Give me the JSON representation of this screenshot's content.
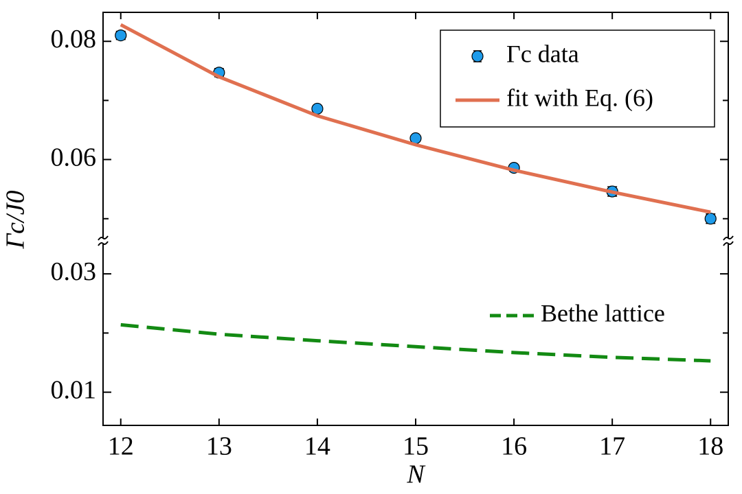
{
  "chart_data": {
    "type": "line",
    "xlabel": "N",
    "ylabel": "Γc/J0",
    "x": [
      12,
      13,
      14,
      15,
      16,
      17,
      18
    ],
    "xlim": [
      11.82,
      18.18
    ],
    "xticks": [
      12,
      13,
      14,
      15,
      16,
      17,
      18
    ],
    "panels": [
      {
        "ylim": [
          0.0466,
          0.0849
        ],
        "yticks": [
          0.06,
          0.08
        ],
        "yminor_ticks": [
          0.05,
          0.07
        ]
      },
      {
        "ylim": [
          0.0044,
          0.035
        ],
        "yticks": [
          0.01,
          0.03
        ],
        "yminor_ticks": [
          0.02
        ]
      }
    ],
    "series": [
      {
        "name": "Γc data",
        "style": "points",
        "panel": 0,
        "color": "#1e9bea",
        "values": [
          0.081,
          0.0747,
          0.0686,
          0.0636,
          0.0586,
          0.0546,
          0.05
        ],
        "errors": [
          0.0007,
          0.0007,
          0.0005,
          0.0005,
          0.0005,
          0.0008,
          0.0008
        ]
      },
      {
        "name": "fit with Eq. (6)",
        "style": "solid",
        "panel": 0,
        "color": "#e07050",
        "values": [
          0.0828,
          0.074,
          0.0674,
          0.0625,
          0.0582,
          0.0545,
          0.0511
        ]
      },
      {
        "name": "Bethe lattice",
        "style": "dashed",
        "panel": 1,
        "color": "#138a13",
        "values": [
          0.0214,
          0.0198,
          0.0187,
          0.0177,
          0.0167,
          0.0159,
          0.0153
        ]
      }
    ]
  }
}
